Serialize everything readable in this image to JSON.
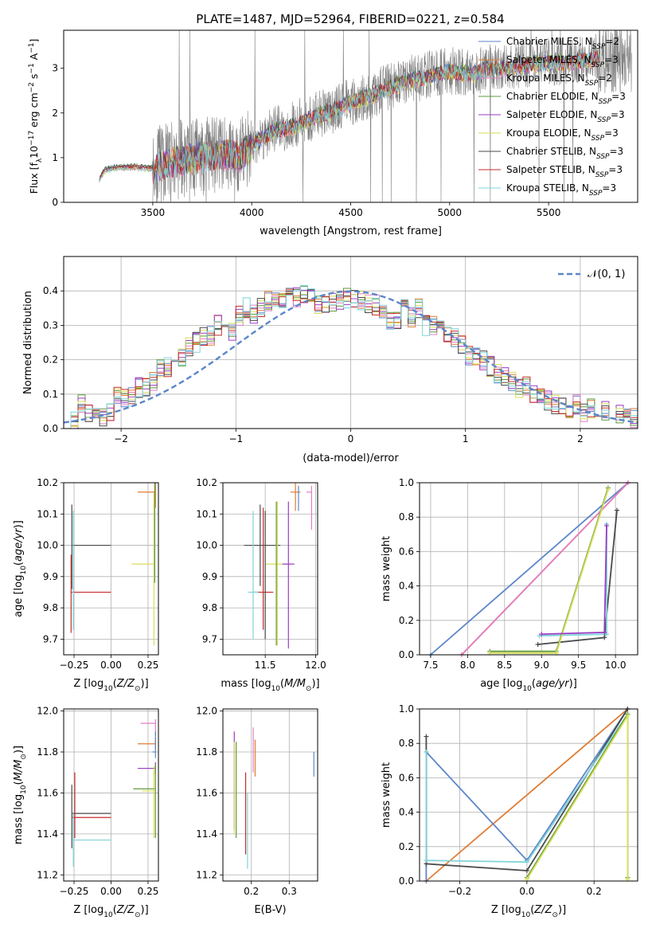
{
  "figure_title": "PLATE=1487, MJD=52964, FIBERID=0221, z=0.584",
  "colors": {
    "chabrier_miles": "#5b86c9",
    "salpeter_miles": "#e07c34",
    "kroupa_miles": "#e37ec4",
    "chabrier_elodie": "#5f9a3c",
    "salpeter_elodie": "#9b3bc4",
    "kroupa_elodie": "#d9dd5a",
    "chabrier_stelib": "#4a4a4a",
    "salpeter_stelib": "#c42b2b",
    "kroupa_stelib": "#7fd4d8",
    "data_spectrum": "#7f7f7f"
  },
  "chart_data": [
    {
      "id": "spectrum",
      "type": "line",
      "title": "PLATE=1487, MJD=52964, FIBERID=0221, z=0.584",
      "xlabel": "wavelength [Angstrom, rest frame]",
      "ylabel": "Flux [f_λ 10^-17 erg cm^-2 s^-1 A^-1]",
      "xlim": [
        3050,
        5950
      ],
      "ylim": [
        0,
        3.85
      ],
      "xticks": [
        3500,
        4000,
        4500,
        5000,
        5500
      ],
      "yticks": [
        0,
        1,
        2,
        3
      ],
      "grid": false,
      "legend": "upper right",
      "legend_entries": [
        "Chabrier MILES, N_SSP=2",
        "Salpeter MILES, N_SSP=3",
        "Kroupa MILES, N_SSP=2",
        "Chabrier ELODIE, N_SSP=3",
        "Salpeter ELODIE, N_SSP=3",
        "Kroupa ELODIE, N_SSP=3",
        "Chabrier STELIB, N_SSP=3",
        "Salpeter STELIB, N_SSP=3",
        "Kroupa STELIB, N_SSP=3"
      ],
      "legend_colors": [
        "#5b86c9",
        "#e07c34",
        "#e37ec4",
        "#5f9a3c",
        "#9b3bc4",
        "#d9dd5a",
        "#4a4a4a",
        "#c42b2b",
        "#7fd4d8"
      ],
      "continuum_points": [
        [
          3230,
          0.55
        ],
        [
          3260,
          0.75
        ],
        [
          3300,
          0.8
        ],
        [
          3400,
          0.82
        ],
        [
          3500,
          0.78
        ],
        [
          3600,
          0.92
        ],
        [
          3700,
          1.0
        ],
        [
          3800,
          1.05
        ],
        [
          3900,
          1.1
        ],
        [
          3950,
          1.05
        ],
        [
          4000,
          1.3
        ],
        [
          4100,
          1.6
        ],
        [
          4200,
          1.7
        ],
        [
          4300,
          1.9
        ],
        [
          4400,
          2.05
        ],
        [
          4500,
          2.25
        ],
        [
          4600,
          2.4
        ],
        [
          4700,
          2.6
        ],
        [
          4800,
          2.75
        ],
        [
          4900,
          2.85
        ],
        [
          5000,
          2.95
        ],
        [
          5100,
          2.9
        ],
        [
          5200,
          3.0
        ],
        [
          5300,
          3.05
        ],
        [
          5400,
          3.1
        ],
        [
          5500,
          3.15
        ],
        [
          5600,
          3.15
        ],
        [
          5700,
          3.2
        ],
        [
          5750,
          3.25
        ]
      ],
      "model_start": 3230,
      "model_end": 5760,
      "data_start": 3500,
      "data_end": 5920
    },
    {
      "id": "residuals",
      "type": "histogram",
      "xlabel": "(data-model)/error",
      "ylabel": "Normed distribution",
      "xlim": [
        -2.5,
        2.5
      ],
      "ylim": [
        0,
        0.5
      ],
      "xticks": [
        -2,
        -1,
        0,
        1,
        2
      ],
      "yticks": [
        0.0,
        0.1,
        0.2,
        0.3,
        0.4
      ],
      "grid": true,
      "legend": "upper right",
      "legend_entries": [
        "𝒩(0, 1)"
      ],
      "bin_width": 0.1,
      "base_values": [
        0.02,
        0.02,
        0.07,
        0.05,
        0.03,
        0.03,
        0.05,
        0.1,
        0.09,
        0.09,
        0.12,
        0.12,
        0.14,
        0.18,
        0.18,
        0.2,
        0.21,
        0.24,
        0.25,
        0.27,
        0.27,
        0.3,
        0.31,
        0.28,
        0.33,
        0.35,
        0.33,
        0.35,
        0.37,
        0.38,
        0.38,
        0.4,
        0.38,
        0.39,
        0.38,
        0.36,
        0.36,
        0.37,
        0.37,
        0.38,
        0.38,
        0.37,
        0.36,
        0.36,
        0.34,
        0.31,
        0.32,
        0.36,
        0.32,
        0.35,
        0.3,
        0.3,
        0.3,
        0.27,
        0.26,
        0.24,
        0.21,
        0.21,
        0.2,
        0.18,
        0.16,
        0.15,
        0.14,
        0.12,
        0.12,
        0.1,
        0.09,
        0.08,
        0.07,
        0.07,
        0.06,
        0.07,
        0.05,
        0.06,
        0.04,
        0.05,
        0.05,
        0.04,
        0.05,
        0.03
      ],
      "normal_curve": {
        "name": "𝒩(0, 1)",
        "mean": 0,
        "sigma": 1,
        "color": "#5b86c9"
      }
    },
    {
      "id": "age_vs_Z",
      "type": "errorbar",
      "xlabel": "Z [log10(Z/Z⊙)]",
      "ylabel": "age  [log10(age/yr)]",
      "xlim": [
        -0.32,
        0.32
      ],
      "ylim": [
        9.65,
        10.2
      ],
      "xticks": [
        -0.25,
        0.0,
        0.25
      ],
      "yticks": [
        9.7,
        9.8,
        9.9,
        10.0,
        10.1,
        10.2
      ],
      "grid": true,
      "points": [
        {
          "x": -0.265,
          "y": 10.0,
          "xerr": [
            0,
            0.265
          ],
          "yerr": [
            0.14,
            0.13
          ],
          "color": "#4a4a4a"
        },
        {
          "x": -0.27,
          "y": 9.85,
          "xerr": [
            0,
            0.27
          ],
          "yerr": [
            0.13,
            0.12
          ],
          "color": "#c42b2b"
        },
        {
          "x": -0.255,
          "y": 9.85,
          "xerr": [
            0.005,
            0.005
          ],
          "yerr": [
            0.12,
            0.26
          ],
          "color": "#7fd4d8"
        },
        {
          "x": 0.3,
          "y": 10.17,
          "xerr": [
            0.12,
            0.0
          ],
          "yerr": [
            0.05,
            0.03
          ],
          "color": "#e07c34"
        },
        {
          "x": 0.29,
          "y": 9.94,
          "xerr": [
            0.15,
            0.0
          ],
          "yerr": [
            0.26,
            0.23
          ],
          "color": "#d9dd5a"
        },
        {
          "x": 0.295,
          "y": 9.94,
          "xerr": [
            0.0,
            0.0
          ],
          "yerr": [
            0.06,
            0.26
          ],
          "color": "#5f9a3c"
        }
      ]
    },
    {
      "id": "age_vs_mass",
      "type": "errorbar",
      "xlabel": "mass [log10(M/M⊙)]",
      "ylabel": "",
      "xlim": [
        11.08,
        12.02
      ],
      "ylim": [
        9.65,
        10.2
      ],
      "xticks": [
        11.5,
        12.0
      ],
      "yticks": [
        9.7,
        9.8,
        9.9,
        10.0,
        10.1,
        10.2
      ],
      "grid": true,
      "points": [
        {
          "x": 11.45,
          "y": 10.0,
          "xerr": [
            0.16,
            0.2
          ],
          "yerr": [
            0.13,
            0.13
          ],
          "color": "#4a4a4a"
        },
        {
          "x": 11.48,
          "y": 9.85,
          "xerr": [
            0.1,
            0.1
          ],
          "yerr": [
            0.12,
            0.27
          ],
          "color": "#c42b2b"
        },
        {
          "x": 11.38,
          "y": 9.85,
          "xerr": [
            0.05,
            0.05
          ],
          "yerr": [
            0.15,
            0.26
          ],
          "color": "#7fd4d8"
        },
        {
          "x": 11.62,
          "y": 9.94,
          "xerr": [
            0.12,
            0.12
          ],
          "yerr": [
            0.26,
            0.2
          ],
          "color": "#d9dd5a"
        },
        {
          "x": 11.73,
          "y": 9.94,
          "xerr": [
            0.06,
            0.06
          ],
          "yerr": [
            0.27,
            0.2
          ],
          "color": "#9b3bc4"
        },
        {
          "x": 11.8,
          "y": 10.17,
          "xerr": [
            0.05,
            0.05
          ],
          "yerr": [
            0.06,
            0.03
          ],
          "color": "#e07c34"
        },
        {
          "x": 11.83,
          "y": 10.17,
          "xerr": [
            0.0,
            0.0
          ],
          "yerr": [
            0.06,
            0.02
          ],
          "color": "#5b86c9"
        },
        {
          "x": 11.96,
          "y": 10.17,
          "xerr": [
            0.05,
            0.0
          ],
          "yerr": [
            0.12,
            0.02
          ],
          "color": "#e37ec4"
        },
        {
          "x": 11.61,
          "y": 9.94,
          "xerr": [
            0.0,
            0.0
          ],
          "yerr": [
            0.26,
            0.2
          ],
          "color": "#5f9a3c"
        },
        {
          "x": 11.5,
          "y": 9.9,
          "xerr": [
            0.0,
            0.0
          ],
          "yerr": [
            0.2,
            0.21
          ],
          "color": "#4a4a4a"
        }
      ]
    },
    {
      "id": "massweight_vs_age",
      "type": "line",
      "xlabel": "age  [log10(age/yr)]",
      "ylabel": "mass weight",
      "xlim": [
        7.35,
        10.3
      ],
      "ylim": [
        0,
        1.0
      ],
      "xticks": [
        7.5,
        8.0,
        8.5,
        9.0,
        9.5,
        10.0
      ],
      "yticks": [
        0.0,
        0.2,
        0.4,
        0.6,
        0.8,
        1.0
      ],
      "grid": true,
      "series": [
        {
          "color": "#5b86c9",
          "x": [
            7.5,
            10.17
          ],
          "y": [
            0.0,
            1.0
          ]
        },
        {
          "color": "#e07c34",
          "x": [
            7.92,
            10.17
          ],
          "y": [
            0.0,
            1.0
          ]
        },
        {
          "color": "#e37ec4",
          "x": [
            7.92,
            10.17
          ],
          "y": [
            0.0,
            1.0
          ]
        },
        {
          "color": "#4a4a4a",
          "x": [
            8.95,
            9.85,
            10.02
          ],
          "y": [
            0.06,
            0.1,
            0.84
          ]
        },
        {
          "color": "#7fd4d8",
          "x": [
            8.97,
            9.88,
            9.88
          ],
          "y": [
            0.11,
            0.12,
            0.76
          ]
        },
        {
          "color": "#5f9a3c",
          "x": [
            8.3,
            9.2,
            9.9
          ],
          "y": [
            0.02,
            0.02,
            0.97
          ]
        },
        {
          "color": "#d9dd5a",
          "x": [
            8.3,
            9.2,
            9.9
          ],
          "y": [
            0.01,
            0.01,
            0.96
          ]
        },
        {
          "color": "#9b3bc4",
          "x": [
            9.0,
            9.85,
            9.88
          ],
          "y": [
            0.12,
            0.13,
            0.75
          ]
        }
      ]
    },
    {
      "id": "mass_vs_Z",
      "type": "errorbar",
      "xlabel": "Z [log10(Z/Z⊙)]",
      "ylabel": "mass [log10(M/M⊙)]",
      "xlim": [
        -0.32,
        0.32
      ],
      "ylim": [
        11.17,
        12.01
      ],
      "xticks": [
        -0.25,
        0.0,
        0.25
      ],
      "yticks": [
        11.2,
        11.4,
        11.6,
        11.8,
        12.0
      ],
      "grid": true,
      "points": [
        {
          "x": -0.265,
          "y": 11.5,
          "xerr": [
            0,
            0.265
          ],
          "yerr": [
            0.17,
            0.14
          ],
          "color": "#4a4a4a"
        },
        {
          "x": -0.245,
          "y": 11.48,
          "xerr": [
            0.02,
            0.245
          ],
          "yerr": [
            0.1,
            0.22
          ],
          "color": "#c42b2b"
        },
        {
          "x": -0.255,
          "y": 11.37,
          "xerr": [
            0.0,
            0.255
          ],
          "yerr": [
            0.13,
            0.13
          ],
          "color": "#7fd4d8"
        },
        {
          "x": 0.3,
          "y": 11.94,
          "xerr": [
            0.1,
            0.0
          ],
          "yerr": [
            0.06,
            0.02
          ],
          "color": "#e37ec4"
        },
        {
          "x": 0.3,
          "y": 11.84,
          "xerr": [
            0.12,
            0.0
          ],
          "yerr": [
            0.03,
            0.03
          ],
          "color": "#e07c34"
        },
        {
          "x": 0.3,
          "y": 11.8,
          "xerr": [
            0.02,
            0.0
          ],
          "yerr": [
            0.03,
            0.1
          ],
          "color": "#5b86c9"
        },
        {
          "x": 0.3,
          "y": 11.72,
          "xerr": [
            0.12,
            0.0
          ],
          "yerr": [
            0.03,
            0.03
          ],
          "color": "#9b3bc4"
        },
        {
          "x": 0.3,
          "y": 11.62,
          "xerr": [
            0.15,
            0.0
          ],
          "yerr": [
            0.24,
            0.12
          ],
          "color": "#5f9a3c"
        },
        {
          "x": 0.29,
          "y": 11.61,
          "xerr": [
            0.08,
            0.0
          ],
          "yerr": [
            0.23,
            0.12
          ],
          "color": "#d9dd5a"
        }
      ]
    },
    {
      "id": "mass_vs_EBV",
      "type": "errorbar",
      "xlabel": "E(B-V)",
      "ylabel": "",
      "xlim": [
        0.125,
        0.375
      ],
      "ylim": [
        11.17,
        12.01
      ],
      "xticks": [
        0.2,
        0.3
      ],
      "yticks": [
        11.2,
        11.4,
        11.6,
        11.8,
        12.0
      ],
      "grid": true,
      "points": [
        {
          "x": 0.155,
          "y": 11.72,
          "xerr": [
            0,
            0
          ],
          "yerr": [
            0.3,
            0.18
          ],
          "color": "#9b3bc4"
        },
        {
          "x": 0.16,
          "y": 11.6,
          "xerr": [
            0,
            0
          ],
          "yerr": [
            0.22,
            0.25
          ],
          "color": "#5f9a3c"
        },
        {
          "x": 0.155,
          "y": 11.6,
          "xerr": [
            0,
            0
          ],
          "yerr": [
            0.2,
            0.25
          ],
          "color": "#d9dd5a"
        },
        {
          "x": 0.185,
          "y": 11.5,
          "xerr": [
            0,
            0
          ],
          "yerr": [
            0.2,
            0.2
          ],
          "color": "#c42b2b"
        },
        {
          "x": 0.19,
          "y": 11.45,
          "xerr": [
            0,
            0
          ],
          "yerr": [
            0.22,
            0.15
          ],
          "color": "#7fd4d8"
        },
        {
          "x": 0.205,
          "y": 11.82,
          "xerr": [
            0,
            0
          ],
          "yerr": [
            0.12,
            0.1
          ],
          "color": "#e37ec4"
        },
        {
          "x": 0.21,
          "y": 11.78,
          "xerr": [
            0,
            0
          ],
          "yerr": [
            0.1,
            0.08
          ],
          "color": "#e07c34"
        },
        {
          "x": 0.365,
          "y": 11.75,
          "xerr": [
            0,
            0
          ],
          "yerr": [
            0.07,
            0.05
          ],
          "color": "#5b86c9"
        }
      ]
    },
    {
      "id": "massweight_vs_Z",
      "type": "line",
      "xlabel": "Z [log10(Z/Z⊙)]",
      "ylabel": "mass weight",
      "xlim": [
        -0.32,
        0.33
      ],
      "ylim": [
        0,
        1.0
      ],
      "xticks": [
        -0.2,
        0.0,
        0.2
      ],
      "yticks": [
        0.0,
        0.2,
        0.4,
        0.6,
        0.8,
        1.0
      ],
      "grid": true,
      "series": [
        {
          "color": "#e07c34",
          "x": [
            -0.3,
            0.3
          ],
          "y": [
            0.0,
            1.0
          ]
        },
        {
          "color": "#5b86c9",
          "x": [
            -0.3,
            -0.3,
            0.0,
            0.3
          ],
          "y": [
            0.0,
            0.75,
            0.12,
            1.0
          ]
        },
        {
          "color": "#4a4a4a",
          "x": [
            -0.3,
            -0.3,
            0.0,
            0.3
          ],
          "y": [
            0.84,
            0.1,
            0.06,
            1.0
          ]
        },
        {
          "color": "#7fd4d8",
          "x": [
            -0.3,
            -0.3,
            0.0,
            0.3
          ],
          "y": [
            0.75,
            0.12,
            0.11,
            0.97
          ]
        },
        {
          "color": "#5f9a3c",
          "x": [
            0.0,
            0.3,
            0.3
          ],
          "y": [
            0.02,
            0.97,
            0.02
          ]
        },
        {
          "color": "#d9dd5a",
          "x": [
            0.0,
            0.3,
            0.3
          ],
          "y": [
            0.01,
            0.96,
            0.01
          ]
        }
      ]
    }
  ]
}
